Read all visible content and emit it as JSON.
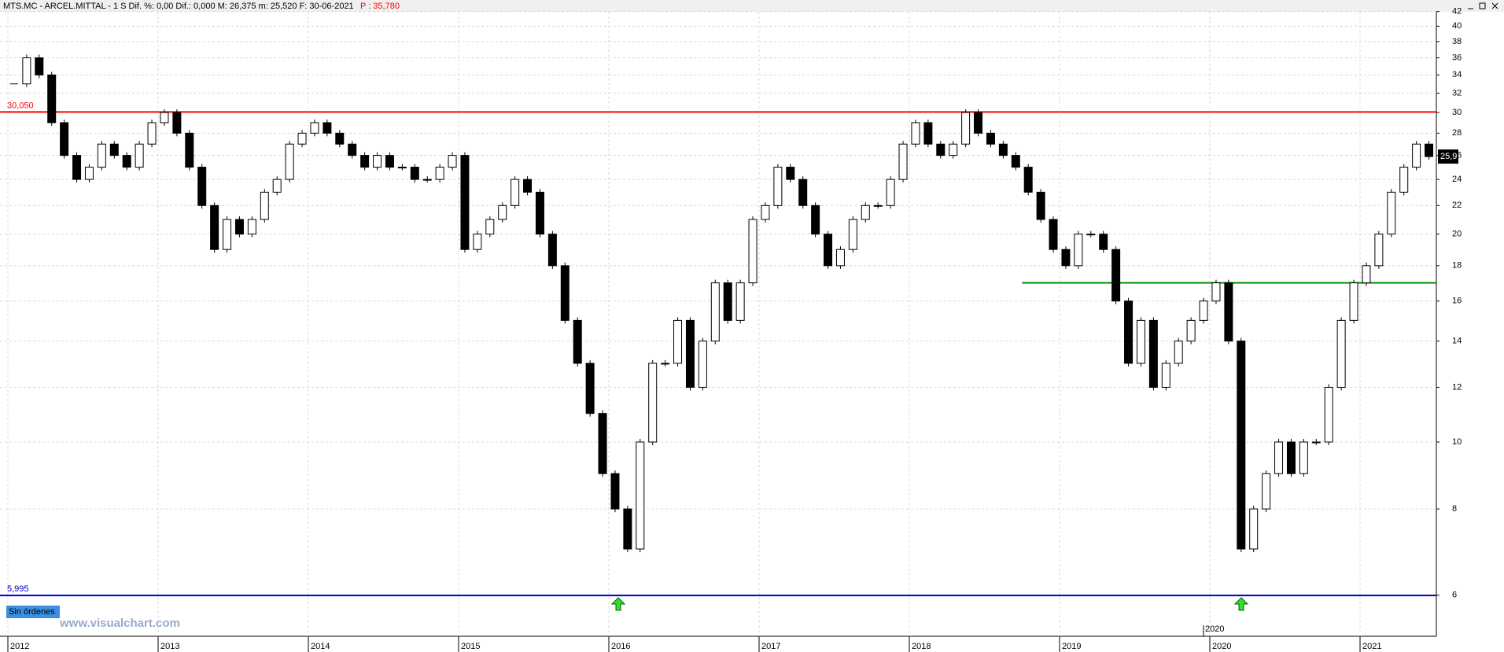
{
  "header": {
    "title": "MTS.MC - ARCEL.MITTAL -  1 S  Dif. %: 0,00  Dif.: 0,000  M: 26,375  m: 25,520  F: 30-06-2021",
    "price": "P : 35,780"
  },
  "orders_button": "Sin órdenes",
  "watermark": "www.visualchart.com",
  "chart_data": {
    "type": "candlestick",
    "log_scale": true,
    "grid": true,
    "up_color": "#ffffff",
    "down_color": "#000000",
    "categories": [
      "2012",
      null,
      null,
      null,
      null,
      null,
      null,
      null,
      null,
      null,
      null,
      null,
      "2013",
      null,
      null,
      null,
      null,
      null,
      null,
      null,
      null,
      null,
      null,
      null,
      "2014",
      null,
      null,
      null,
      null,
      null,
      null,
      null,
      null,
      null,
      null,
      null,
      "2015",
      null,
      null,
      null,
      null,
      null,
      null,
      null,
      null,
      null,
      null,
      null,
      "2016",
      null,
      null,
      null,
      null,
      null,
      null,
      null,
      null,
      null,
      null,
      null,
      "2017",
      null,
      null,
      null,
      null,
      null,
      null,
      null,
      null,
      null,
      null,
      null,
      "2018",
      null,
      null,
      null,
      null,
      null,
      null,
      null,
      null,
      null,
      null,
      null,
      "2019",
      null,
      null,
      null,
      null,
      null,
      null,
      null,
      null,
      null,
      null,
      null,
      "2020",
      null,
      null,
      null,
      null,
      null,
      null,
      null,
      null,
      null,
      null,
      null,
      "2021",
      null,
      null,
      null,
      null,
      null
    ],
    "values": [
      33,
      36,
      34,
      29,
      26,
      24,
      25,
      27,
      26,
      25,
      27,
      29,
      30,
      28,
      25,
      22,
      19,
      21,
      20,
      21,
      23,
      24,
      27,
      28,
      29,
      28,
      27,
      26,
      25,
      26,
      25,
      25,
      24,
      24,
      25,
      26,
      19,
      20,
      21,
      22,
      24,
      23,
      20,
      18,
      15,
      13,
      11,
      9,
      8,
      7,
      10,
      13,
      13,
      15,
      12,
      14,
      17,
      15,
      17,
      21,
      22,
      25,
      24,
      22,
      20,
      18,
      19,
      21,
      22,
      22,
      24,
      27,
      29,
      27,
      26,
      27,
      30,
      28,
      27,
      26,
      25,
      23,
      21,
      19,
      18,
      20,
      20,
      19,
      16,
      13,
      15,
      12,
      13,
      14,
      15,
      16,
      17,
      14,
      7,
      8,
      9,
      10,
      9,
      10,
      10,
      12,
      15,
      17,
      18,
      20,
      23,
      25,
      27,
      25.9
    ],
    "ylim": [
      5.26,
      42.3
    ],
    "yticks": [
      6,
      8,
      10,
      12,
      14,
      16,
      18,
      20,
      22,
      24,
      26,
      28,
      30,
      32,
      34,
      36,
      38,
      40,
      42
    ],
    "last_price": {
      "value": 25.9,
      "label": "25,9"
    },
    "cursor_label": "2020",
    "levels": [
      {
        "value": 30.05,
        "label": "30,050",
        "color": "#ff0000"
      },
      {
        "value": 5.995,
        "label": "5,995",
        "color": "#0000cc"
      },
      {
        "value": 17,
        "color": "#009900",
        "from": 81
      }
    ]
  }
}
